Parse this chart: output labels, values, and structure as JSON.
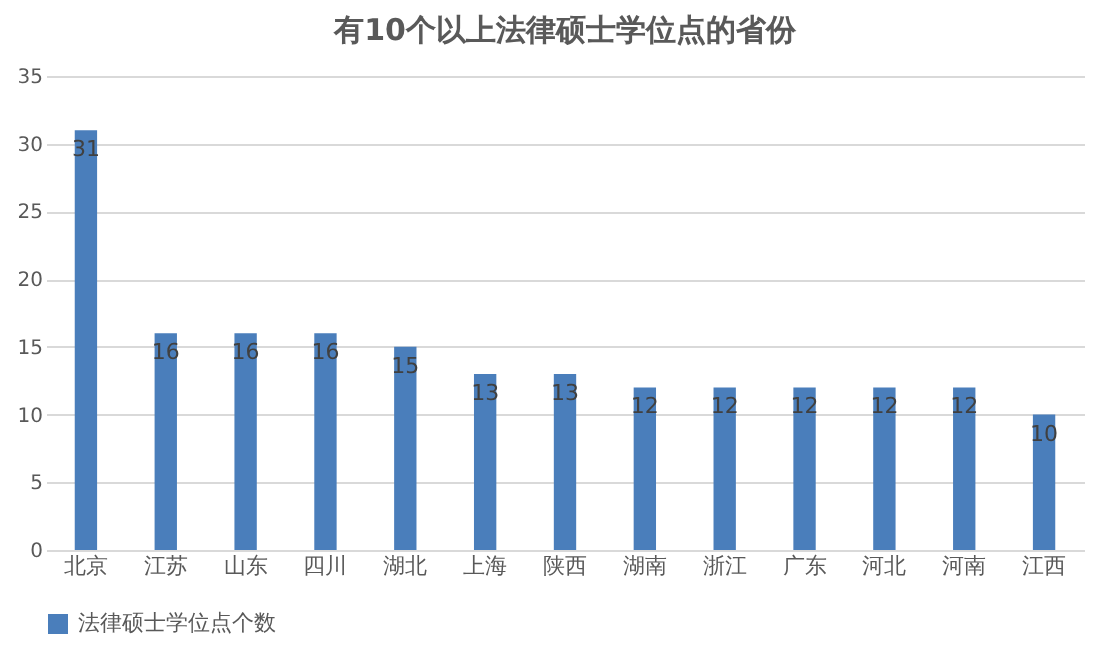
{
  "chart_data": {
    "type": "bar",
    "title": "有10个以上法律硕士学位点的省份",
    "categories": [
      "北京",
      "江苏",
      "山东",
      "四川",
      "湖北",
      "上海",
      "陕西",
      "湖南",
      "浙江",
      "广东",
      "河北",
      "河南",
      "江西"
    ],
    "series": [
      {
        "name": "法律硕士学位点个数",
        "color": "#4a7ebb",
        "values": [
          31,
          16,
          16,
          16,
          15,
          13,
          13,
          12,
          12,
          12,
          12,
          12,
          10
        ]
      }
    ],
    "ylim": [
      0,
      35
    ],
    "yticks": [
      0,
      5,
      10,
      15,
      20,
      25,
      30,
      35
    ],
    "grid": "y",
    "legend": "bottom",
    "data_labels": true
  }
}
